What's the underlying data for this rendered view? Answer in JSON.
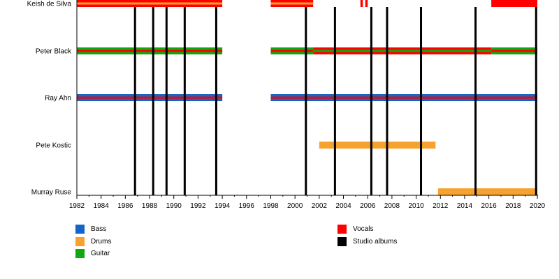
{
  "chart_data": {
    "type": "timeline",
    "members": [
      "Keish de Silva",
      "Peter Black",
      "Ray Ahn",
      "Pete Kostic",
      "Murray Ruse"
    ],
    "xlim": [
      1982,
      2020
    ],
    "ticks": [
      1982,
      1984,
      1986,
      1988,
      1990,
      1992,
      1994,
      1996,
      1998,
      2000,
      2002,
      2004,
      2006,
      2008,
      2010,
      2012,
      2014,
      2016,
      2018,
      2020
    ],
    "roles": {
      "Bass": "#1465c8",
      "Drums": "#f7a22e",
      "Guitar": "#10a810",
      "Vocals": "#ff0000",
      "Studio albums": "#000000"
    },
    "bars": [
      {
        "member": "Keish de Silva",
        "start": 1982,
        "end": 1994,
        "roles": [
          "Vocals",
          "Drums"
        ]
      },
      {
        "member": "Keish de Silva",
        "start": 1998,
        "end": 2001.5,
        "roles": [
          "Vocals",
          "Drums"
        ]
      },
      {
        "member": "Keish de Silva",
        "start": 2005.4,
        "end": 2005.6,
        "roles": [
          "Vocals"
        ]
      },
      {
        "member": "Keish de Silva",
        "start": 2005.8,
        "end": 2006.0,
        "roles": [
          "Vocals"
        ]
      },
      {
        "member": "Keish de Silva",
        "start": 2016.2,
        "end": 2020,
        "roles": [
          "Vocals"
        ]
      },
      {
        "member": "Peter Black",
        "start": 1982,
        "end": 1994,
        "roles": [
          "Guitar",
          "Vocals"
        ]
      },
      {
        "member": "Peter Black",
        "start": 1998,
        "end": 2001.5,
        "roles": [
          "Guitar",
          "Vocals"
        ]
      },
      {
        "member": "Peter Black",
        "start": 2001.5,
        "end": 2016.2,
        "roles": [
          "Vocals",
          "Guitar"
        ]
      },
      {
        "member": "Peter Black",
        "start": 2016.2,
        "end": 2020,
        "roles": [
          "Guitar",
          "Vocals"
        ]
      },
      {
        "member": "Ray Ahn",
        "start": 1982,
        "end": 1994,
        "roles": [
          "Bass",
          "Vocals"
        ]
      },
      {
        "member": "Ray Ahn",
        "start": 1998,
        "end": 2020,
        "roles": [
          "Bass",
          "Vocals"
        ]
      },
      {
        "member": "Pete Kostic",
        "start": 2002,
        "end": 2011.6,
        "roles": [
          "Drums"
        ]
      },
      {
        "member": "Murray Ruse",
        "start": 2011.8,
        "end": 2020,
        "roles": [
          "Drums"
        ]
      }
    ],
    "albums": [
      1986.8,
      1988.3,
      1989.4,
      1990.9,
      1993.5,
      2000.9,
      2003.3,
      2006.3,
      2007.6,
      2010.4,
      2014.9,
      2019.9
    ],
    "legend": [
      {
        "label": "Bass",
        "color": "#1465c8"
      },
      {
        "label": "Drums",
        "color": "#f7a22e"
      },
      {
        "label": "Guitar",
        "color": "#10a810"
      },
      {
        "label": "Vocals",
        "color": "#ff0000"
      },
      {
        "label": "Studio albums",
        "color": "#000000"
      }
    ]
  }
}
